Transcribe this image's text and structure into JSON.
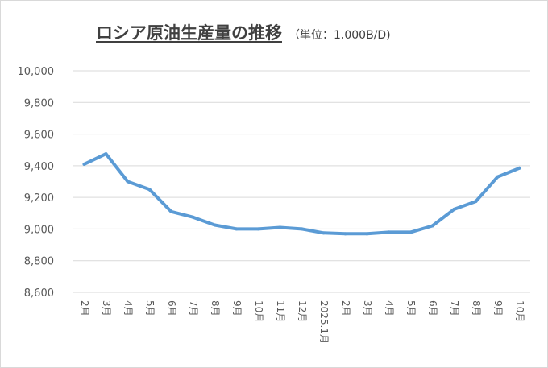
{
  "chart_data": {
    "type": "line",
    "title": "ロシア原油生産量の推移",
    "subtitle": "（単位：1,000B/D)",
    "xlabel": "",
    "ylabel": "",
    "ylim": [
      8600,
      10000
    ],
    "yticks": [
      8600,
      8800,
      9000,
      9200,
      9400,
      9600,
      9800,
      10000
    ],
    "ytick_labels": [
      "8,600",
      "8,800",
      "9,000",
      "9,200",
      "9,400",
      "9,600",
      "9,800",
      "10,000"
    ],
    "categories": [
      "2月",
      "3月",
      "4月",
      "5月",
      "6月",
      "7月",
      "8月",
      "9月",
      "10月",
      "11月",
      "12月",
      "2025.1月",
      "2月",
      "3月",
      "4月",
      "5月",
      "6月",
      "7月",
      "8月",
      "9月",
      "10月"
    ],
    "series": [
      {
        "values": [
          9410,
          9475,
          9300,
          9250,
          9110,
          9075,
          9025,
          9000,
          9000,
          9010,
          9000,
          8975,
          8970,
          8970,
          8980,
          8980,
          9020,
          9125,
          9175,
          9330,
          9385
        ]
      }
    ],
    "grid": true,
    "legend": "none",
    "line_color": "#5B9BD5"
  }
}
